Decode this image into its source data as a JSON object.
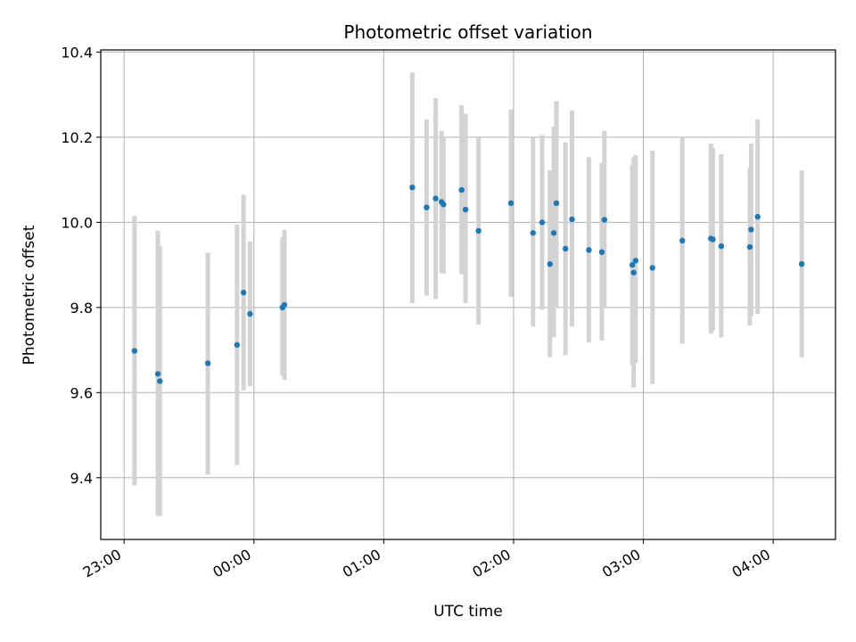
{
  "chart_data": {
    "type": "scatter",
    "title": "Photometric offset variation",
    "xlabel": "UTC time",
    "ylabel": "Photometric offset",
    "x_unit": "hours since 23:00 UTC",
    "xlim": [
      -0.18,
      5.48
    ],
    "ylim": [
      9.255,
      10.405
    ],
    "grid": true,
    "x_ticks": [
      {
        "value": 0,
        "label": "23:00"
      },
      {
        "value": 1,
        "label": "00:00"
      },
      {
        "value": 2,
        "label": "01:00"
      },
      {
        "value": 3,
        "label": "02:00"
      },
      {
        "value": 4,
        "label": "03:00"
      },
      {
        "value": 5,
        "label": "04:00"
      }
    ],
    "y_ticks": [
      {
        "value": 9.4,
        "label": "9.4"
      },
      {
        "value": 9.6,
        "label": "9.6"
      },
      {
        "value": 9.8,
        "label": "9.8"
      },
      {
        "value": 10.0,
        "label": "10.0"
      },
      {
        "value": 10.2,
        "label": "10.2"
      },
      {
        "value": 10.4,
        "label": "10.4"
      }
    ],
    "point_color": "#1f77b4",
    "errorbar_color": "#d3d3d3",
    "points": [
      {
        "x": 0.08,
        "y": 9.698,
        "lo": 9.382,
        "hi": 10.015
      },
      {
        "x": 0.26,
        "y": 9.644,
        "lo": 9.31,
        "hi": 9.98
      },
      {
        "x": 0.275,
        "y": 9.627,
        "lo": 9.31,
        "hi": 9.945
      },
      {
        "x": 0.645,
        "y": 9.669,
        "lo": 9.408,
        "hi": 9.929
      },
      {
        "x": 0.87,
        "y": 9.712,
        "lo": 9.43,
        "hi": 9.995
      },
      {
        "x": 0.92,
        "y": 9.835,
        "lo": 9.605,
        "hi": 10.065
      },
      {
        "x": 0.97,
        "y": 9.785,
        "lo": 9.615,
        "hi": 9.955
      },
      {
        "x": 1.22,
        "y": 9.8,
        "lo": 9.64,
        "hi": 9.965
      },
      {
        "x": 1.235,
        "y": 9.806,
        "lo": 9.63,
        "hi": 9.982
      },
      {
        "x": 2.22,
        "y": 10.082,
        "lo": 9.81,
        "hi": 10.352
      },
      {
        "x": 2.33,
        "y": 10.035,
        "lo": 9.828,
        "hi": 10.242
      },
      {
        "x": 2.4,
        "y": 10.056,
        "lo": 9.82,
        "hi": 10.292
      },
      {
        "x": 2.445,
        "y": 10.048,
        "lo": 9.88,
        "hi": 10.215
      },
      {
        "x": 2.46,
        "y": 10.042,
        "lo": 9.88,
        "hi": 10.2
      },
      {
        "x": 2.6,
        "y": 10.076,
        "lo": 9.878,
        "hi": 10.275
      },
      {
        "x": 2.63,
        "y": 10.03,
        "lo": 9.81,
        "hi": 10.255
      },
      {
        "x": 2.73,
        "y": 9.98,
        "lo": 9.76,
        "hi": 10.2
      },
      {
        "x": 2.98,
        "y": 10.045,
        "lo": 9.825,
        "hi": 10.265
      },
      {
        "x": 3.15,
        "y": 9.975,
        "lo": 9.755,
        "hi": 10.2
      },
      {
        "x": 3.22,
        "y": 10.0,
        "lo": 9.795,
        "hi": 10.205
      },
      {
        "x": 3.28,
        "y": 9.902,
        "lo": 9.683,
        "hi": 10.122
      },
      {
        "x": 3.31,
        "y": 9.975,
        "lo": 9.73,
        "hi": 10.225
      },
      {
        "x": 3.33,
        "y": 10.045,
        "lo": 9.8,
        "hi": 10.285
      },
      {
        "x": 3.4,
        "y": 9.938,
        "lo": 9.688,
        "hi": 10.188
      },
      {
        "x": 3.45,
        "y": 10.007,
        "lo": 9.755,
        "hi": 10.263
      },
      {
        "x": 3.58,
        "y": 9.935,
        "lo": 9.718,
        "hi": 10.153
      },
      {
        "x": 3.68,
        "y": 9.93,
        "lo": 9.722,
        "hi": 10.14
      },
      {
        "x": 3.7,
        "y": 10.006,
        "lo": 9.8,
        "hi": 10.215
      },
      {
        "x": 3.915,
        "y": 9.9,
        "lo": 9.665,
        "hi": 10.135
      },
      {
        "x": 3.925,
        "y": 9.882,
        "lo": 9.612,
        "hi": 10.152
      },
      {
        "x": 3.94,
        "y": 9.91,
        "lo": 9.67,
        "hi": 10.158
      },
      {
        "x": 4.07,
        "y": 9.893,
        "lo": 9.62,
        "hi": 10.168
      },
      {
        "x": 4.3,
        "y": 9.957,
        "lo": 9.715,
        "hi": 10.2
      },
      {
        "x": 4.52,
        "y": 9.962,
        "lo": 9.738,
        "hi": 10.185
      },
      {
        "x": 4.535,
        "y": 9.96,
        "lo": 9.745,
        "hi": 10.175
      },
      {
        "x": 4.6,
        "y": 9.944,
        "lo": 9.73,
        "hi": 10.16
      },
      {
        "x": 4.82,
        "y": 9.942,
        "lo": 9.758,
        "hi": 10.128
      },
      {
        "x": 4.83,
        "y": 9.983,
        "lo": 9.78,
        "hi": 10.185
      },
      {
        "x": 4.88,
        "y": 10.013,
        "lo": 9.785,
        "hi": 10.242
      },
      {
        "x": 5.22,
        "y": 9.902,
        "lo": 9.683,
        "hi": 10.122
      }
    ]
  }
}
